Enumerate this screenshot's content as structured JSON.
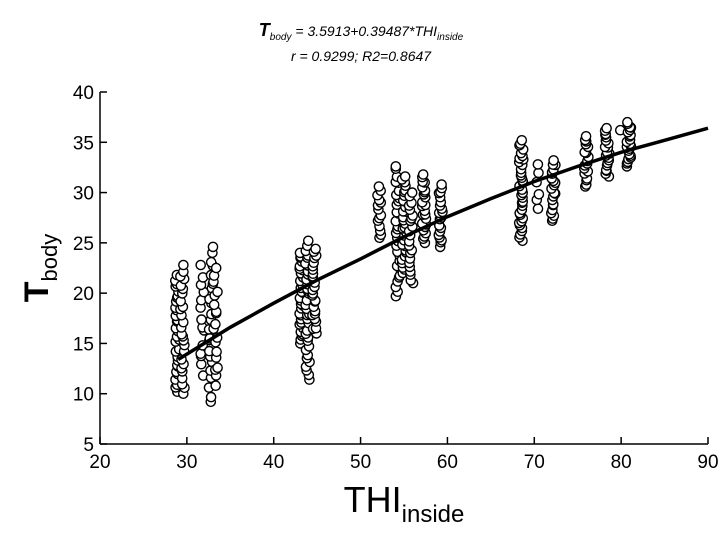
{
  "chart_data": {
    "type": "scatter",
    "title": {
      "symbol": "T",
      "symbol_sub": "body",
      "eq_text": " = 3.5913+0.39487*THI",
      "eq_sub": "inside",
      "stats": "r = 0.9299; R2=0.8647"
    },
    "xlabel": {
      "main": "THI",
      "sub": "inside"
    },
    "ylabel": {
      "main": "T",
      "sub": "body"
    },
    "xlim": [
      20,
      90
    ],
    "ylim": [
      5,
      40
    ],
    "xticks": [
      "20",
      "30",
      "40",
      "50",
      "60",
      "70",
      "80",
      "90"
    ],
    "yticks": [
      "5",
      "10",
      "15",
      "20",
      "25",
      "30",
      "35",
      "40"
    ],
    "grid": false,
    "marker": "open-circle",
    "fit_curve": {
      "x": [
        29,
        35,
        40,
        45,
        50,
        55,
        60,
        65,
        70,
        75,
        80,
        85,
        90
      ],
      "y": [
        13.4,
        16.6,
        19.0,
        21.3,
        23.4,
        25.6,
        27.6,
        29.4,
        31.1,
        32.6,
        34.0,
        35.2,
        36.4
      ]
    },
    "clusters": [
      {
        "x": 28.9,
        "ymin": 10.2,
        "ymax": 21.8,
        "n": 30
      },
      {
        "x": 29.5,
        "ymin": 10.0,
        "ymax": 22.8,
        "n": 26
      },
      {
        "x": 31.8,
        "ymin": 11.8,
        "ymax": 22.8,
        "n": 14
      },
      {
        "x": 32.8,
        "ymin": 9.2,
        "ymax": 24.6,
        "n": 22
      },
      {
        "x": 33.3,
        "ymin": 10.8,
        "ymax": 22.5,
        "n": 18
      },
      {
        "x": 43.2,
        "ymin": 15.0,
        "ymax": 24.0,
        "n": 30
      },
      {
        "x": 43.9,
        "ymin": 11.4,
        "ymax": 25.2,
        "n": 34
      },
      {
        "x": 44.7,
        "ymin": 16.0,
        "ymax": 24.4,
        "n": 26
      },
      {
        "x": 52.2,
        "ymin": 25.5,
        "ymax": 30.6,
        "n": 14
      },
      {
        "x": 54.3,
        "ymin": 19.7,
        "ymax": 32.6,
        "n": 30
      },
      {
        "x": 55.0,
        "ymin": 22.0,
        "ymax": 31.6,
        "n": 30
      },
      {
        "x": 55.8,
        "ymin": 21.0,
        "ymax": 30.0,
        "n": 22
      },
      {
        "x": 57.3,
        "ymin": 25.0,
        "ymax": 31.8,
        "n": 24
      },
      {
        "x": 59.2,
        "ymin": 24.6,
        "ymax": 30.8,
        "n": 20
      },
      {
        "x": 68.5,
        "ymin": 25.2,
        "ymax": 35.2,
        "n": 36
      },
      {
        "x": 70.4,
        "ymin": 28.4,
        "ymax": 32.8,
        "n": 6
      },
      {
        "x": 72.2,
        "ymin": 27.2,
        "ymax": 33.2,
        "n": 22
      },
      {
        "x": 76.0,
        "ymin": 30.6,
        "ymax": 35.6,
        "n": 18
      },
      {
        "x": 78.4,
        "ymin": 31.6,
        "ymax": 36.4,
        "n": 20
      },
      {
        "x": 79.8,
        "ymin": 36.2,
        "ymax": 36.2,
        "n": 1
      },
      {
        "x": 80.9,
        "ymin": 32.6,
        "ymax": 37.0,
        "n": 22
      }
    ]
  }
}
